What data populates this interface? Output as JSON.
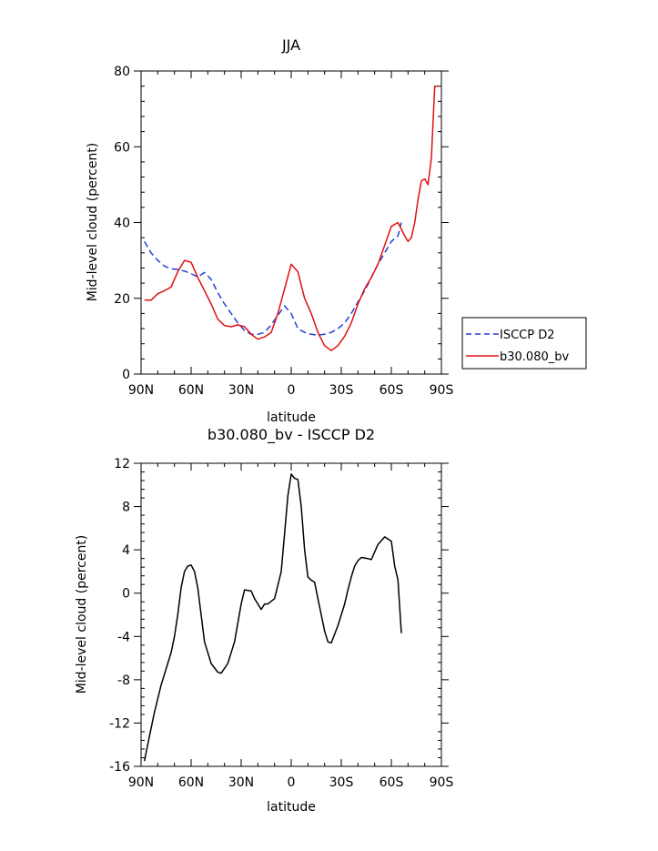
{
  "chart_data": [
    {
      "type": "line",
      "title": "JJA",
      "xlabel": "latitude",
      "ylabel": "Mid-level cloud (percent)",
      "xlim": [
        90,
        -90
      ],
      "ylim": [
        0,
        80
      ],
      "xticks": [
        90,
        60,
        30,
        0,
        -30,
        -60,
        -90
      ],
      "xtick_labels": [
        "90N",
        "60N",
        "30N",
        "0",
        "30S",
        "60S",
        "90S"
      ],
      "yticks": [
        0,
        20,
        40,
        60,
        80
      ],
      "ytick_labels": [
        "0",
        "20",
        "40",
        "60",
        "80"
      ],
      "legend_position": "right-middle",
      "series": [
        {
          "name": "ISCCP D2",
          "color": "#1f3fd6",
          "dash": "dashed",
          "x": [
            88,
            84,
            80,
            76,
            72,
            68,
            64,
            60,
            56,
            52,
            48,
            44,
            40,
            36,
            32,
            28,
            24,
            20,
            16,
            12,
            8,
            4,
            0,
            -4,
            -8,
            -12,
            -16,
            -20,
            -24,
            -28,
            -32,
            -36,
            -40,
            -44,
            -48,
            -52,
            -56,
            -60,
            -64,
            -66
          ],
          "y": [
            35,
            32,
            30,
            28.5,
            27.8,
            27.6,
            27.2,
            26.5,
            25.6,
            26.8,
            25,
            21.5,
            18.5,
            16,
            13.5,
            11.5,
            10.5,
            10.5,
            11,
            13,
            15.5,
            18,
            16,
            12,
            11,
            10.5,
            10.3,
            10.5,
            11,
            12,
            13.5,
            16,
            19,
            22,
            25.5,
            29,
            32,
            35,
            36.5,
            40
          ]
        },
        {
          "name": "b30.080_bv",
          "color": "#e01010",
          "dash": "solid",
          "x": [
            88,
            84,
            80,
            76,
            72,
            68,
            64,
            60,
            56,
            52,
            48,
            44,
            40,
            36,
            32,
            28,
            24,
            20,
            16,
            12,
            8,
            4,
            0,
            -4,
            -8,
            -12,
            -14,
            -16,
            -20,
            -24,
            -28,
            -32,
            -36,
            -40,
            -44,
            -48,
            -52,
            -56,
            -60,
            -64,
            -68,
            -70,
            -72,
            -74,
            -76,
            -78,
            -80,
            -82,
            -84,
            -86,
            -88
          ],
          "y": [
            19.5,
            19.5,
            21.2,
            22,
            23,
            27,
            30,
            29.5,
            25.5,
            22,
            18.5,
            14.5,
            12.8,
            12.5,
            13,
            12.5,
            10.5,
            9.2,
            9.8,
            11,
            16,
            22.5,
            29,
            27,
            20,
            16,
            13.5,
            11,
            7.5,
            6.2,
            7.5,
            10,
            13.5,
            18.5,
            22.5,
            25.5,
            29,
            34,
            39,
            40,
            36.5,
            35,
            36,
            40,
            46,
            51,
            51.5,
            50,
            57,
            76,
            76
          ]
        }
      ]
    },
    {
      "type": "line",
      "title": "b30.080_bv - ISCCP D2",
      "xlabel": "latitude",
      "ylabel": "Mid-level cloud (percent)",
      "xlim": [
        90,
        -90
      ],
      "ylim": [
        -16,
        12
      ],
      "xticks": [
        90,
        60,
        30,
        0,
        -30,
        -60,
        -90
      ],
      "xtick_labels": [
        "90N",
        "60N",
        "30N",
        "0",
        "30S",
        "60S",
        "90S"
      ],
      "yticks": [
        -16,
        -12,
        -8,
        -4,
        0,
        4,
        8,
        12
      ],
      "ytick_labels": [
        "-16",
        "-12",
        "-8",
        "-4",
        "0",
        "4",
        "8",
        "12"
      ],
      "series": [
        {
          "color": "#000000",
          "dash": "solid",
          "x": [
            88,
            86,
            82,
            78,
            74,
            72,
            70,
            68,
            66,
            64,
            62,
            60,
            58,
            56,
            52,
            48,
            44,
            42,
            38,
            34,
            30,
            28,
            24,
            22,
            18,
            16,
            14,
            10,
            6,
            4,
            2,
            0,
            -2,
            -4,
            -6,
            -8,
            -10,
            -12,
            -14,
            -16,
            -18,
            -20,
            -22,
            -24,
            -28,
            -32,
            -34,
            -36,
            -38,
            -40,
            -42,
            -46,
            -48,
            -52,
            -56,
            -60,
            -62,
            -64,
            -66
          ],
          "y": [
            -15.5,
            -14,
            -11,
            -8.5,
            -6.5,
            -5.5,
            -4,
            -2,
            0.5,
            2,
            2.5,
            2.6,
            2,
            0.5,
            -4.5,
            -6.5,
            -7.3,
            -7.4,
            -6.5,
            -4.5,
            -1,
            0.3,
            0.2,
            -0.5,
            -1.5,
            -1,
            -1,
            -0.5,
            2,
            5.5,
            9,
            11,
            10.6,
            10.5,
            8,
            4,
            1.5,
            1.2,
            1,
            -0.5,
            -2,
            -3.5,
            -4.5,
            -4.6,
            -3,
            -1,
            0.3,
            1.5,
            2.5,
            3,
            3.3,
            3.2,
            3.1,
            4.5,
            5.2,
            4.8,
            2.5,
            1.2,
            -3.7
          ]
        }
      ]
    }
  ]
}
